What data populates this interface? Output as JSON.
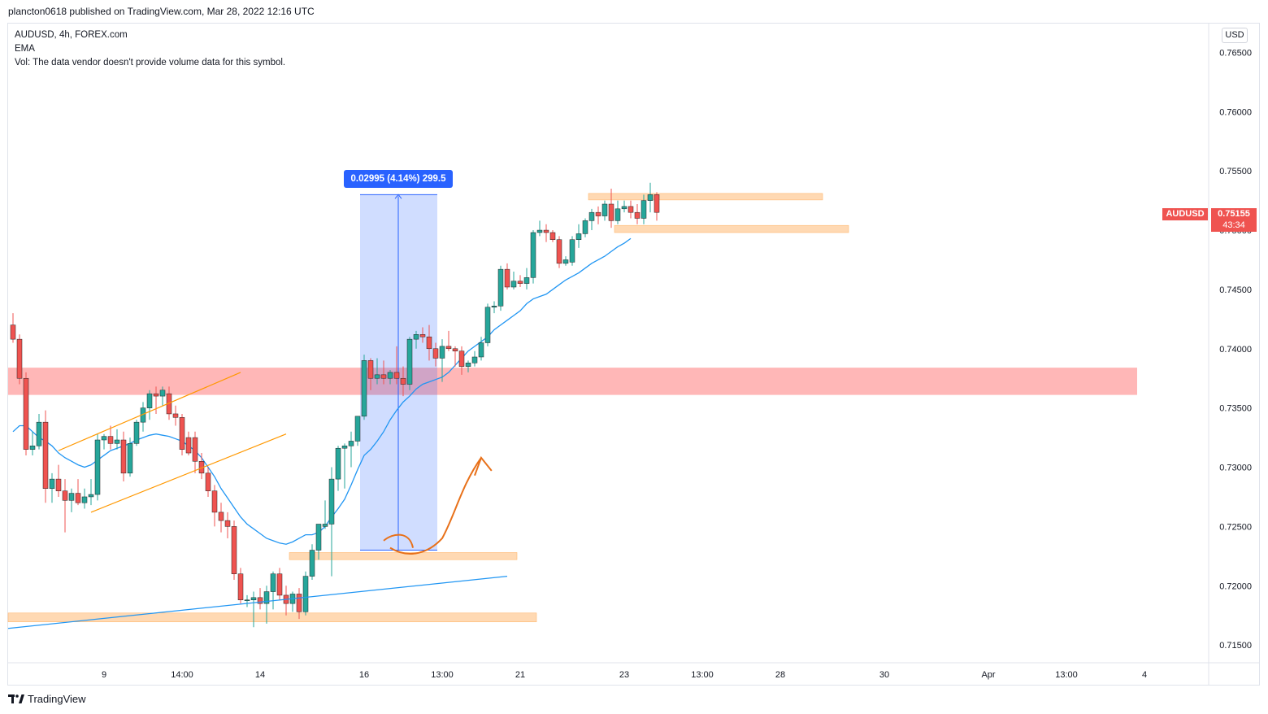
{
  "header": {
    "attribution": "plancton0618 published on TradingView.com, Mar 28, 2022 12:16 UTC"
  },
  "legend": {
    "symbol_line": "AUDUSD, 4h, FOREX.com",
    "ema_line": "EMA",
    "vol_line": "Vol: The data vendor doesn't provide volume data for this symbol."
  },
  "currency_button": "USD",
  "last_price": {
    "symbol": "AUDUSD",
    "value": "0.75155",
    "countdown": "43:34"
  },
  "measurement": {
    "label": "0.02995 (4.14%) 299.5"
  },
  "footer": {
    "logo_text": "TradingView"
  },
  "colors": {
    "up": "#26a69a",
    "down": "#ef5350",
    "ema": "#2196f3",
    "zone": "#ffcc99",
    "resistance": "#ff9999",
    "measure": "#2962ff"
  },
  "chart_data": {
    "type": "candlestick",
    "symbol": "AUDUSD",
    "timeframe": "4h",
    "ylim": [
      0.7135,
      0.7675
    ],
    "y_ticks": [
      "0.76500",
      "0.76000",
      "0.75500",
      "0.75000",
      "0.74500",
      "0.74000",
      "0.73500",
      "0.73000",
      "0.72500",
      "0.72000",
      "0.71500"
    ],
    "x_ticks": [
      {
        "label": "9",
        "bar": 14
      },
      {
        "label": "14:00",
        "bar": 26
      },
      {
        "label": "14",
        "bar": 38
      },
      {
        "label": "16",
        "bar": 54
      },
      {
        "label": "13:00",
        "bar": 66
      },
      {
        "label": "21",
        "bar": 78
      },
      {
        "label": "23",
        "bar": 94
      },
      {
        "label": "13:00",
        "bar": 106
      },
      {
        "label": "28",
        "bar": 118
      },
      {
        "label": "30",
        "bar": 134
      },
      {
        "label": "Apr",
        "bar": 150
      },
      {
        "label": "13:00",
        "bar": 162
      },
      {
        "label": "4",
        "bar": 174
      }
    ],
    "candles": [
      [
        0.742,
        0.743,
        0.7405,
        0.7408
      ],
      [
        0.7408,
        0.7412,
        0.737,
        0.7375
      ],
      [
        0.7375,
        0.738,
        0.731,
        0.7315
      ],
      [
        0.7315,
        0.733,
        0.731,
        0.7318
      ],
      [
        0.7318,
        0.7345,
        0.7315,
        0.7338
      ],
      [
        0.7338,
        0.7348,
        0.727,
        0.7282
      ],
      [
        0.7282,
        0.7295,
        0.727,
        0.729
      ],
      [
        0.729,
        0.7302,
        0.7275,
        0.728
      ],
      [
        0.728,
        0.729,
        0.7245,
        0.7272
      ],
      [
        0.7272,
        0.7282,
        0.7262,
        0.7278
      ],
      [
        0.7278,
        0.729,
        0.7268,
        0.727
      ],
      [
        0.727,
        0.7282,
        0.7265,
        0.7275
      ],
      [
        0.7275,
        0.729,
        0.7268,
        0.7277
      ],
      [
        0.7277,
        0.7328,
        0.7272,
        0.7323
      ],
      [
        0.7323,
        0.7328,
        0.7315,
        0.7326
      ],
      [
        0.7326,
        0.7335,
        0.7315,
        0.732
      ],
      [
        0.732,
        0.7332,
        0.7315,
        0.7323
      ],
      [
        0.7323,
        0.733,
        0.7288,
        0.7295
      ],
      [
        0.7295,
        0.7325,
        0.7292,
        0.732
      ],
      [
        0.732,
        0.734,
        0.7318,
        0.7338
      ],
      [
        0.7338,
        0.7355,
        0.733,
        0.735
      ],
      [
        0.735,
        0.7365,
        0.734,
        0.7362
      ],
      [
        0.7362,
        0.7368,
        0.7345,
        0.736
      ],
      [
        0.736,
        0.7368,
        0.7352,
        0.7365
      ],
      [
        0.7362,
        0.7368,
        0.734,
        0.7345
      ],
      [
        0.7345,
        0.7352,
        0.7335,
        0.7342
      ],
      [
        0.7342,
        0.7345,
        0.731,
        0.7315
      ],
      [
        0.7325,
        0.733,
        0.731,
        0.7312
      ],
      [
        0.7325,
        0.733,
        0.7295,
        0.7305
      ],
      [
        0.7305,
        0.7312,
        0.729,
        0.7295
      ],
      [
        0.7295,
        0.73,
        0.7275,
        0.728
      ],
      [
        0.728,
        0.7285,
        0.725,
        0.7262
      ],
      [
        0.7262,
        0.727,
        0.7245,
        0.7255
      ],
      [
        0.7255,
        0.7262,
        0.724,
        0.725
      ],
      [
        0.725,
        0.7255,
        0.7205,
        0.721
      ],
      [
        0.721,
        0.7215,
        0.7185,
        0.7188
      ],
      [
        0.7188,
        0.7192,
        0.7182,
        0.7188
      ],
      [
        0.7188,
        0.7195,
        0.7165,
        0.719
      ],
      [
        0.719,
        0.7198,
        0.718,
        0.7185
      ],
      [
        0.7185,
        0.72,
        0.7168,
        0.7195
      ],
      [
        0.7195,
        0.7212,
        0.718,
        0.721
      ],
      [
        0.721,
        0.7215,
        0.7188,
        0.7192
      ],
      [
        0.7192,
        0.72,
        0.7175,
        0.7185
      ],
      [
        0.7185,
        0.7195,
        0.7178,
        0.7193
      ],
      [
        0.7193,
        0.7198,
        0.7172,
        0.7178
      ],
      [
        0.7178,
        0.7212,
        0.7175,
        0.7208
      ],
      [
        0.7208,
        0.7235,
        0.7205,
        0.723
      ],
      [
        0.723,
        0.725,
        0.7222,
        0.7252
      ],
      [
        0.725,
        0.7272,
        0.7248,
        0.7252
      ],
      [
        0.7252,
        0.73,
        0.7208,
        0.729
      ],
      [
        0.729,
        0.7318,
        0.728,
        0.7316
      ],
      [
        0.7316,
        0.732,
        0.7282,
        0.7318
      ],
      [
        0.7318,
        0.733,
        0.73,
        0.7322
      ],
      [
        0.7322,
        0.7338,
        0.7318,
        0.7343
      ],
      [
        0.7343,
        0.7395,
        0.734,
        0.739
      ],
      [
        0.739,
        0.7392,
        0.7365,
        0.7375
      ],
      [
        0.7375,
        0.7392,
        0.737,
        0.7378
      ],
      [
        0.7378,
        0.739,
        0.737,
        0.7375
      ],
      [
        0.7375,
        0.7382,
        0.737,
        0.738
      ],
      [
        0.738,
        0.7402,
        0.737,
        0.7375
      ],
      [
        0.7375,
        0.7385,
        0.736,
        0.737
      ],
      [
        0.737,
        0.741,
        0.7365,
        0.7408
      ],
      [
        0.7408,
        0.7415,
        0.74,
        0.7412
      ],
      [
        0.7412,
        0.7418,
        0.7405,
        0.741
      ],
      [
        0.741,
        0.742,
        0.739,
        0.74
      ],
      [
        0.74,
        0.7405,
        0.7385,
        0.7392
      ],
      [
        0.7392,
        0.7408,
        0.7372,
        0.7402
      ],
      [
        0.7402,
        0.7415,
        0.7398,
        0.74
      ],
      [
        0.74,
        0.7402,
        0.7385,
        0.7398
      ],
      [
        0.7398,
        0.7402,
        0.7378,
        0.7385
      ],
      [
        0.7385,
        0.739,
        0.738,
        0.7388
      ],
      [
        0.7388,
        0.7398,
        0.7385,
        0.7393
      ],
      [
        0.7393,
        0.741,
        0.739,
        0.7405
      ],
      [
        0.7405,
        0.7438,
        0.7402,
        0.7435
      ],
      [
        0.7435,
        0.744,
        0.743,
        0.7436
      ],
      [
        0.7436,
        0.747,
        0.7432,
        0.7467
      ],
      [
        0.7467,
        0.7472,
        0.745,
        0.7452
      ],
      [
        0.7452,
        0.7465,
        0.745,
        0.7457
      ],
      [
        0.7457,
        0.7462,
        0.7452,
        0.7455
      ],
      [
        0.7455,
        0.7468,
        0.745,
        0.746
      ],
      [
        0.746,
        0.75,
        0.7455,
        0.7498
      ],
      [
        0.7498,
        0.7508,
        0.7495,
        0.75
      ],
      [
        0.75,
        0.7505,
        0.749,
        0.7498
      ],
      [
        0.7498,
        0.75,
        0.749,
        0.7492
      ],
      [
        0.7492,
        0.7495,
        0.7468,
        0.7472
      ],
      [
        0.7472,
        0.7478,
        0.747,
        0.7475
      ],
      [
        0.7473,
        0.7495,
        0.747,
        0.7492
      ],
      [
        0.7492,
        0.7505,
        0.7485,
        0.7497
      ],
      [
        0.7497,
        0.751,
        0.7494,
        0.7508
      ],
      [
        0.7508,
        0.7518,
        0.75,
        0.7515
      ],
      [
        0.7515,
        0.752,
        0.7505,
        0.7512
      ],
      [
        0.7512,
        0.7525,
        0.7508,
        0.7522
      ],
      [
        0.7522,
        0.7535,
        0.7502,
        0.7508
      ],
      [
        0.7508,
        0.7525,
        0.7505,
        0.7518
      ],
      [
        0.7518,
        0.7525,
        0.7515,
        0.752
      ],
      [
        0.752,
        0.7525,
        0.751,
        0.7515
      ],
      [
        0.7515,
        0.7522,
        0.7505,
        0.751
      ],
      [
        0.751,
        0.753,
        0.7505,
        0.7525
      ],
      [
        0.7525,
        0.754,
        0.7515,
        0.753
      ],
      [
        0.753,
        0.7532,
        0.7508,
        0.7515
      ]
    ],
    "ema": [
      0.733,
      0.7335,
      0.7335,
      0.733,
      0.7325,
      0.7322,
      0.7318,
      0.7312,
      0.7308,
      0.7305,
      0.7302,
      0.73,
      0.7302,
      0.7306,
      0.731,
      0.7314,
      0.7316,
      0.7318,
      0.732,
      0.7323,
      0.7325,
      0.7327,
      0.7328,
      0.7327,
      0.7326,
      0.7324,
      0.7322,
      0.7318,
      0.7314,
      0.7308,
      0.73,
      0.7292,
      0.7282,
      0.7274,
      0.7266,
      0.7258,
      0.7252,
      0.7248,
      0.7244,
      0.724,
      0.7238,
      0.7236,
      0.7235,
      0.7237,
      0.724,
      0.7243,
      0.7243,
      0.7245,
      0.725,
      0.7258,
      0.7265,
      0.7273,
      0.7285,
      0.7298,
      0.731,
      0.7315,
      0.7322,
      0.733,
      0.734,
      0.7348,
      0.7355,
      0.736,
      0.7366,
      0.737,
      0.7372,
      0.7374,
      0.7376,
      0.738,
      0.7386,
      0.7392,
      0.7398,
      0.7402,
      0.7406,
      0.741,
      0.7416,
      0.742,
      0.7424,
      0.7428,
      0.7432,
      0.7438,
      0.7442,
      0.7444,
      0.7446,
      0.745,
      0.7454,
      0.7458,
      0.7461,
      0.7464,
      0.7468,
      0.7472,
      0.7475,
      0.7478,
      0.7482,
      0.7486,
      0.7489,
      0.7493
    ]
  },
  "annotations": {
    "resistance_band": {
      "low": 0.7361,
      "high": 0.7384
    },
    "zones": [
      {
        "low": 0.71695,
        "high": 0.7177
      },
      {
        "low": 0.7222,
        "high": 0.7228
      },
      {
        "low": 0.7498,
        "high": 0.7504
      },
      {
        "low": 0.7526,
        "high": 0.7531
      }
    ],
    "measure_range": {
      "from": 0.723,
      "to": 0.753
    }
  }
}
